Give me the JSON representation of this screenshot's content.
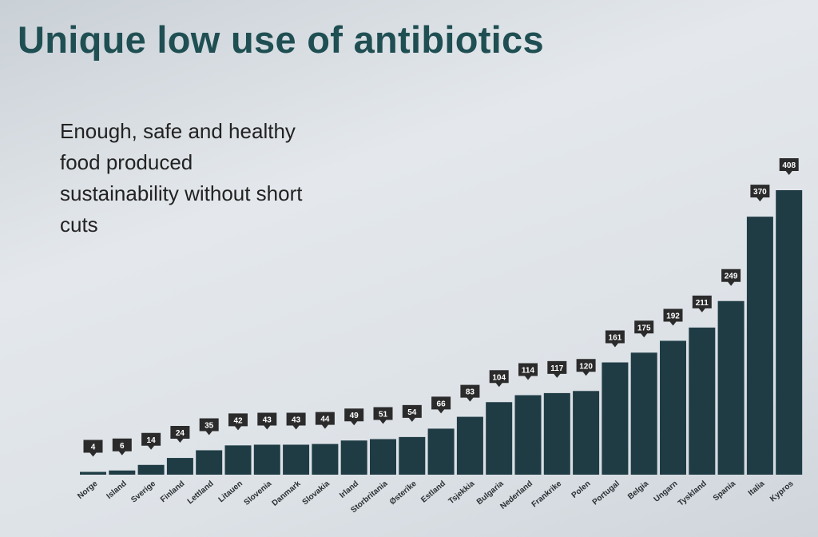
{
  "slide": {
    "title": "Unique low use of antibiotics",
    "subtitle_lines": [
      "Enough, safe and healthy",
      "food produced",
      "sustainability without short",
      "cuts"
    ]
  },
  "chart_data": {
    "type": "bar",
    "title": "",
    "xlabel": "",
    "ylabel": "",
    "ylim": [
      0,
      420
    ],
    "grid": false,
    "bar_color": "#1f3c45",
    "label_color": "#2b2b2b",
    "categories": [
      "Norge",
      "Island",
      "Sverige",
      "Finland",
      "Lettland",
      "Litauen",
      "Slovenia",
      "Danmark",
      "Slovakia",
      "Irland",
      "Storbritania",
      "Østerike",
      "Estland",
      "Tsjekkia",
      "Bulgaria",
      "Nederland",
      "Frankrike",
      "Polen",
      "Portugal",
      "Belgia",
      "Ungarn",
      "Tyskland",
      "Spania",
      "Italia",
      "Kypros"
    ],
    "values": [
      4,
      6,
      14,
      24,
      35,
      42,
      43,
      43,
      44,
      49,
      51,
      54,
      66,
      83,
      104,
      114,
      117,
      120,
      161,
      175,
      192,
      211,
      249,
      370,
      408
    ]
  }
}
